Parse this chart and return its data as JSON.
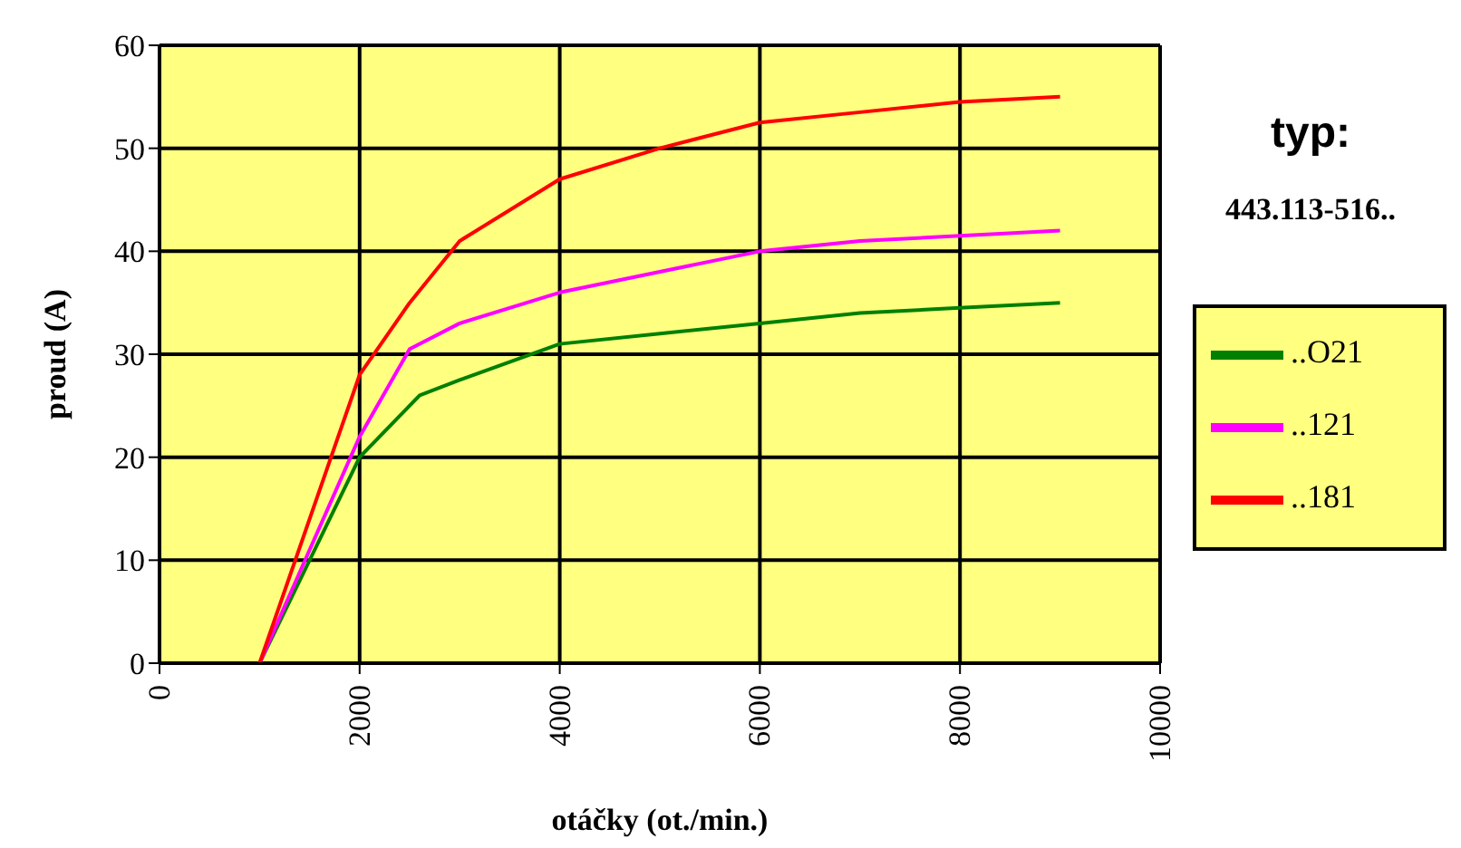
{
  "chart_data": {
    "type": "line",
    "title": "typ:",
    "subtitle": "443.113-516..",
    "xlabel": "otáčky (ot./min.)",
    "ylabel": "proud (A)",
    "xlim": [
      0,
      10000
    ],
    "xticks": [
      0,
      2000,
      4000,
      6000,
      8000,
      10000
    ],
    "ylim": [
      0,
      60
    ],
    "yticks": [
      0,
      10,
      20,
      30,
      40,
      50,
      60
    ],
    "grid": true,
    "legend": "right",
    "marker": "none",
    "line_style": "solid",
    "series": [
      {
        "name": "..O21",
        "color": "#008000",
        "x": [
          1000,
          2000,
          2600,
          3000,
          4000,
          5000,
          6000,
          7000,
          8000,
          9000
        ],
        "values": [
          0,
          20,
          26,
          27.5,
          31,
          32,
          33,
          34,
          34.5,
          35
        ]
      },
      {
        "name": "..121",
        "color": "#ff00ff",
        "x": [
          1000,
          2000,
          2500,
          3000,
          4000,
          5000,
          6000,
          7000,
          8000,
          9000
        ],
        "values": [
          0,
          22,
          30.5,
          33,
          36,
          38,
          40,
          41,
          41.5,
          42
        ]
      },
      {
        "name": "..181",
        "color": "#ff0000",
        "x": [
          1000,
          2000,
          2500,
          3000,
          4000,
          5000,
          6000,
          7000,
          8000,
          9000
        ],
        "values": [
          0,
          28,
          35,
          41,
          47,
          50,
          52.5,
          53.5,
          54.5,
          55
        ]
      }
    ]
  }
}
